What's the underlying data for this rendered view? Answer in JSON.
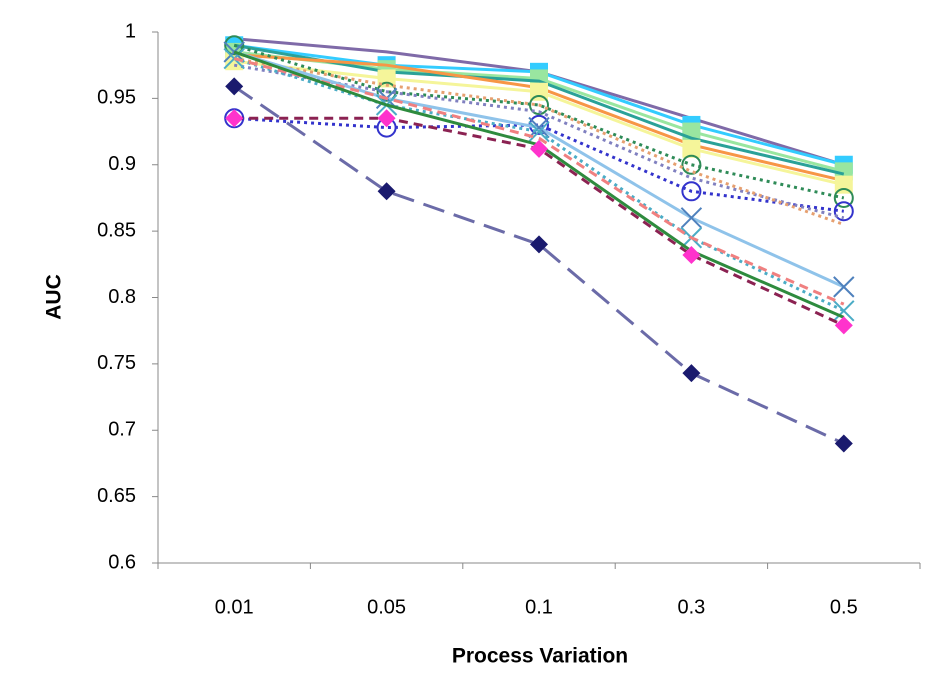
{
  "chart_data": {
    "type": "line",
    "x_label": "Process Variation",
    "y_label": "AUC",
    "categories": [
      "0.01",
      "0.05",
      "0.1",
      "0.3",
      "0.5"
    ],
    "ylim": [
      0.6,
      1
    ],
    "yticks": [
      0.6,
      0.65,
      0.7,
      0.75,
      0.8,
      0.85,
      0.9,
      0.95,
      1
    ],
    "grid": false,
    "series": [
      {
        "color": "#7f6aa8",
        "dash": "solid",
        "marker": "none",
        "marker_color": "#7f6aa8",
        "values": [
          0.995,
          0.985,
          0.97,
          0.935,
          0.9
        ]
      },
      {
        "color": "#33ccff",
        "dash": "solid",
        "marker": "square",
        "marker_color": "#33ccff",
        "values": [
          0.99,
          0.975,
          0.97,
          0.93,
          0.9
        ]
      },
      {
        "color": "#99e6a0",
        "dash": "solid",
        "marker": "square",
        "marker_color": "#99e6a0",
        "values": [
          0.985,
          0.972,
          0.965,
          0.925,
          0.895
        ]
      },
      {
        "color": "#2aa198",
        "dash": "solid",
        "marker": "none",
        "marker_color": "#2aa198",
        "values": [
          0.99,
          0.97,
          0.963,
          0.92,
          0.893
        ]
      },
      {
        "color": "#f79646",
        "dash": "solid",
        "marker": "none",
        "marker_color": "#f79646",
        "values": [
          0.983,
          0.975,
          0.958,
          0.915,
          0.888
        ]
      },
      {
        "color": "#f5f59a",
        "dash": "solid",
        "marker": "square",
        "marker_color": "#f5f59a",
        "values": [
          0.978,
          0.965,
          0.955,
          0.912,
          0.885
        ]
      },
      {
        "color": "#2e8b57",
        "dash": "dot",
        "marker": "circle",
        "marker_color": "#2e8b57",
        "values": [
          0.99,
          0.955,
          0.945,
          0.9,
          0.875
        ]
      },
      {
        "color": "#3333cc",
        "dash": "dot",
        "marker": "circle",
        "marker_color": "#3333cc",
        "values": [
          0.935,
          0.928,
          0.93,
          0.88,
          0.865
        ]
      },
      {
        "color": "#8080c0",
        "dash": "dot",
        "marker": "none",
        "marker_color": "#8080c0",
        "values": [
          0.975,
          0.955,
          0.94,
          0.89,
          0.86
        ]
      },
      {
        "color": "#e6a070",
        "dash": "dot",
        "marker": "none",
        "marker_color": "#e6a070",
        "values": [
          0.98,
          0.96,
          0.945,
          0.895,
          0.855
        ]
      },
      {
        "color": "#8fc3ea",
        "dash": "solid",
        "marker": "x",
        "marker_color": "#4f81bd",
        "values": [
          0.985,
          0.95,
          0.928,
          0.86,
          0.808
        ]
      },
      {
        "color": "#4bacc6",
        "dash": "dot",
        "marker": "x",
        "marker_color": "#4bacc6",
        "values": [
          0.98,
          0.945,
          0.925,
          0.845,
          0.79
        ]
      },
      {
        "color": "#f08080",
        "dash": "dash",
        "marker": "none",
        "marker_color": "#f08080",
        "values": [
          0.98,
          0.95,
          0.92,
          0.845,
          0.795
        ]
      },
      {
        "color": "#2e8b3e",
        "dash": "solid",
        "marker": "none",
        "marker_color": "#2e8b3e",
        "values": [
          0.985,
          0.945,
          0.915,
          0.835,
          0.785
        ]
      },
      {
        "color": "#8b2252",
        "dash": "dash",
        "marker": "diamond",
        "marker_color": "#ff33cc",
        "values": [
          0.935,
          0.935,
          0.912,
          0.832,
          0.779
        ]
      },
      {
        "color": "#6b6ba8",
        "dash": "longdash",
        "marker": "diamond",
        "marker_color": "#1a1a6e",
        "values": [
          0.959,
          0.88,
          0.84,
          0.743,
          0.69
        ]
      }
    ]
  }
}
